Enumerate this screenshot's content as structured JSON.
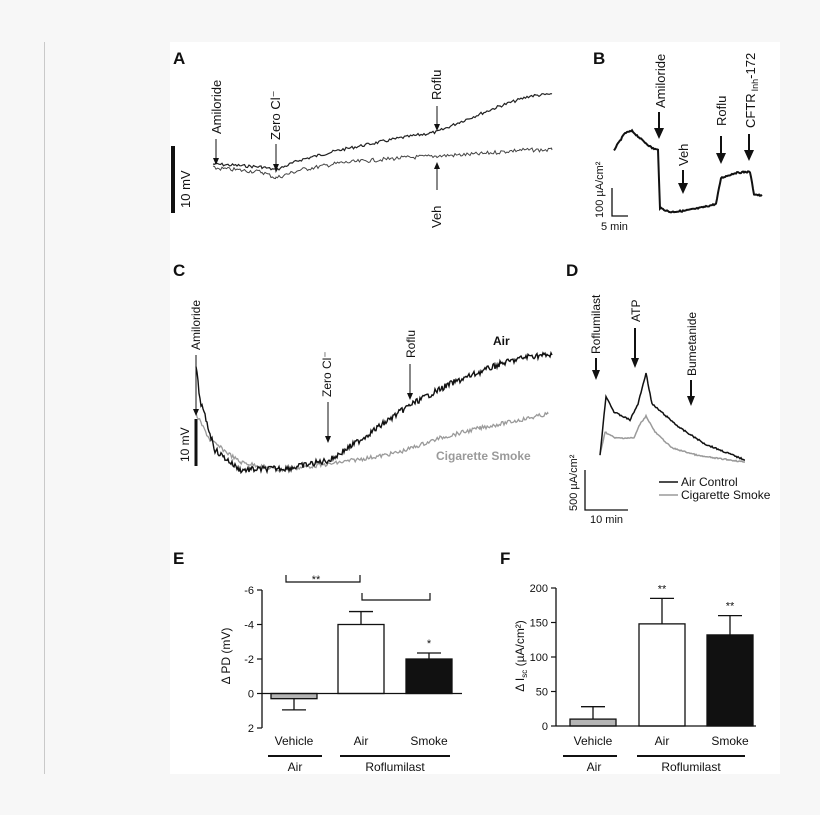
{
  "colors": {
    "air": "#111111",
    "smoke": "#999999",
    "vehicle_bar": "#b0b0b0",
    "axis": "#111111"
  },
  "chart_data": [
    {
      "panel": "A",
      "type": "line",
      "scale_bar": "10 mV",
      "annotations": [
        {
          "text": "Amiloride"
        },
        {
          "text": "Zero Cl⁻"
        },
        {
          "text": "Roflu"
        },
        {
          "text": "Veh"
        }
      ]
    },
    {
      "panel": "B",
      "type": "line",
      "scale_y": "100 µA/cm²",
      "scale_x": "5 min",
      "annotations": [
        {
          "text": "Amiloride"
        },
        {
          "text": "Veh"
        },
        {
          "text": "Roflu"
        },
        {
          "text": "CFTR",
          "sub": "Inh",
          "suffix": "-172"
        }
      ]
    },
    {
      "panel": "C",
      "type": "line",
      "scale_bar": "10 mV",
      "series": [
        {
          "name": "Air"
        },
        {
          "name": "Cigarette Smoke"
        }
      ],
      "annotations": [
        {
          "text": "Amiloride"
        },
        {
          "text": "Zero Cl⁻"
        },
        {
          "text": "Roflu"
        }
      ]
    },
    {
      "panel": "D",
      "type": "line",
      "scale_y": "500 µA/cm²",
      "scale_x": "10 min",
      "legend": [
        "Air Control",
        "Cigarette Smoke"
      ],
      "annotations": [
        {
          "text": "Roflumilast"
        },
        {
          "text": "ATP"
        },
        {
          "text": "Bumetanide"
        }
      ]
    },
    {
      "panel": "E",
      "type": "bar",
      "ylabel": "Δ PD (mV)",
      "ylim": [
        2,
        -6
      ],
      "yticks": [
        "-6",
        "-4",
        "-2",
        "0",
        "2"
      ],
      "categories": [
        "Vehicle",
        "Air",
        "Smoke"
      ],
      "values": [
        0.3,
        -4.0,
        -2.0
      ],
      "errors": [
        0.65,
        0.75,
        0.35
      ],
      "significance": [
        "",
        "",
        "*"
      ],
      "bracket_labels": [
        "**",
        ""
      ],
      "group_labels": [
        "Air",
        "Roflumilast"
      ]
    },
    {
      "panel": "F",
      "type": "bar",
      "ylabel": "Δ Isc (µA/cm²)",
      "ylabel_main": "Δ I",
      "ylabel_sub": "sc",
      "ylabel_rest": " (µA/cm²)",
      "ylim": [
        0,
        200
      ],
      "yticks": [
        "0",
        "50",
        "100",
        "150",
        "200"
      ],
      "categories": [
        "Vehicle",
        "Air",
        "Smoke"
      ],
      "values": [
        10,
        148,
        132
      ],
      "errors": [
        18,
        37,
        28
      ],
      "significance": [
        "",
        "**",
        "**"
      ],
      "group_labels": [
        "Air",
        "Roflumilast"
      ]
    }
  ]
}
